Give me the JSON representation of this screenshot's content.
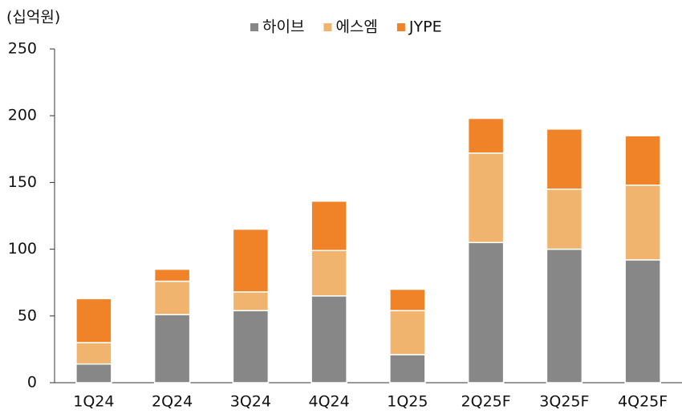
{
  "chart_data": {
    "type": "stacked_bar",
    "unit_label": "(십억원)",
    "categories": [
      "1Q24",
      "2Q24",
      "3Q24",
      "4Q24",
      "1Q25",
      "2Q25F",
      "3Q25F",
      "4Q25F"
    ],
    "series": [
      {
        "name": "하이브",
        "color": "#878787",
        "values": [
          14,
          51,
          54,
          65,
          21,
          105,
          100,
          92
        ]
      },
      {
        "name": "에스엠",
        "color": "#f0b46e",
        "values": [
          16,
          25,
          14,
          34,
          33,
          67,
          45,
          56
        ]
      },
      {
        "name": "JYPE",
        "color": "#f08228",
        "values": [
          33,
          9,
          47,
          37,
          16,
          26,
          45,
          37
        ]
      }
    ],
    "ylim": [
      0,
      250
    ],
    "yticks": [
      0,
      50,
      100,
      150,
      200,
      250
    ],
    "grid": false,
    "legend": "top"
  }
}
